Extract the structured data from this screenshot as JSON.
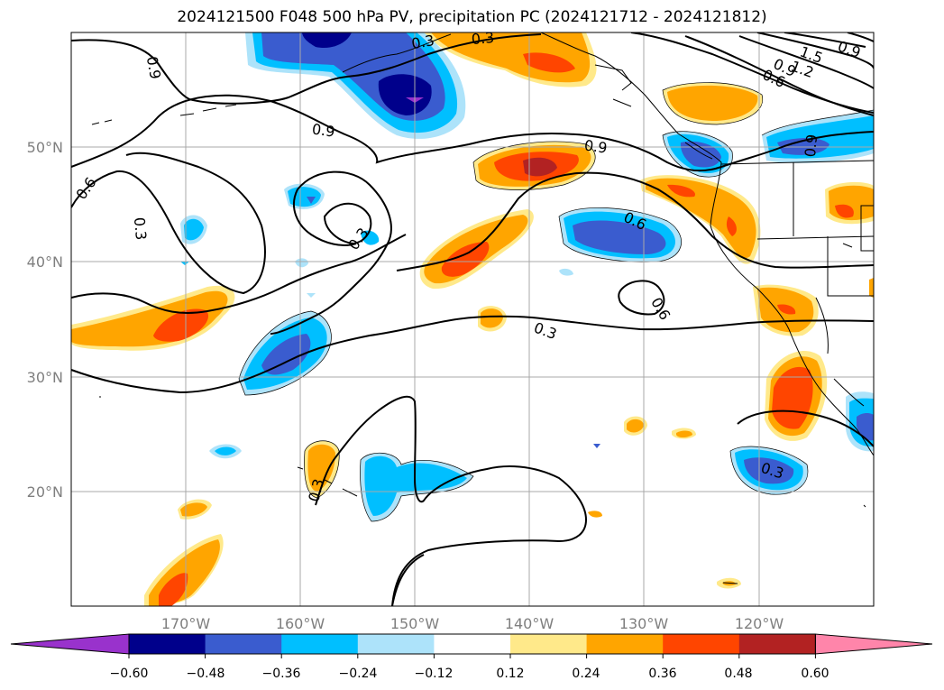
{
  "title": "2024121500 F048 500 hPa PV, precipitation PC (2024121712 - 2024121812)",
  "map": {
    "lat_ticks": [
      "50°N",
      "40°N",
      "30°N",
      "20°N"
    ],
    "lon_ticks": [
      "170°W",
      "160°W",
      "150°W",
      "140°W",
      "130°W",
      "120°W"
    ],
    "grid": true,
    "lon_range": [
      -180,
      -110
    ],
    "lat_range": [
      10,
      60
    ]
  },
  "contour_labels": [
    "0.9",
    "0.9",
    "0.9",
    "0.6",
    "0.3",
    "0.3",
    "0.3",
    "0.6",
    "0.9",
    "0.6",
    "0.3",
    "1.5",
    "1.2",
    "0.9",
    "0.6",
    "0.9",
    "0.3",
    "0.3",
    "0.3"
  ],
  "colorbar": {
    "ticks": [
      "−0.60",
      "−0.48",
      "−0.36",
      "−0.24",
      "−0.12",
      "0.12",
      "0.24",
      "0.36",
      "0.48",
      "0.60"
    ],
    "colors": [
      "#9932CC",
      "#00008B",
      "#3A5CCF",
      "#00BFFF",
      "#ADE3FA",
      "#FFFFFF",
      "#FFE98A",
      "#FFA500",
      "#FF4500",
      "#B22222",
      "#FF85AA"
    ]
  }
}
